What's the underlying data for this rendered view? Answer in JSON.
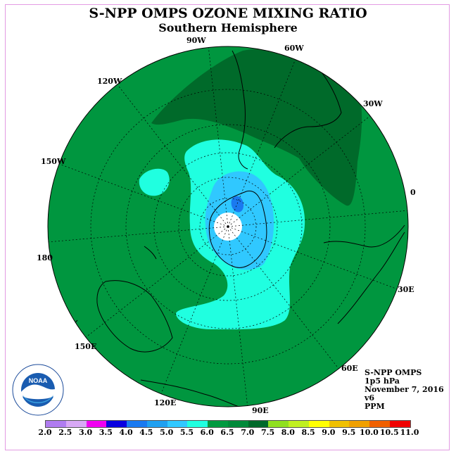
{
  "title": "S-NPP OMPS OZONE MIXING RATIO",
  "subtitle": "Southern Hemisphere",
  "longitude_labels": [
    {
      "key": "90w",
      "text": "90W"
    },
    {
      "key": "60w",
      "text": "60W"
    },
    {
      "key": "120w",
      "text": "120W"
    },
    {
      "key": "30w",
      "text": "30W"
    },
    {
      "key": "150w",
      "text": "150W"
    },
    {
      "key": "0",
      "text": "0"
    },
    {
      "key": "180",
      "text": "180"
    },
    {
      "key": "30e",
      "text": "30E"
    },
    {
      "key": "150e",
      "text": "150E"
    },
    {
      "key": "60e",
      "text": "60E"
    },
    {
      "key": "120e",
      "text": "120E"
    },
    {
      "key": "90e",
      "text": "90E"
    }
  ],
  "info": {
    "instrument": "S-NPP OMPS",
    "level": "1p5 hPa",
    "date": "November 7, 2016",
    "version": "v6",
    "units": "PPM"
  },
  "logo": {
    "text": "NOAA",
    "icon": "noaa-logo"
  },
  "legend": {
    "ticks": [
      "2.0",
      "2.5",
      "3.0",
      "3.5",
      "4.0",
      "4.5",
      "5.0",
      "5.5",
      "6.0",
      "6.5",
      "7.0",
      "7.5",
      "8.0",
      "8.5",
      "9.0",
      "9.5",
      "10.0",
      "10.5",
      "11.0"
    ],
    "colors": [
      "#b07cf0",
      "#d8a8f5",
      "#f000f0",
      "#0a00e0",
      "#1a7af0",
      "#20a0f0",
      "#30c8ff",
      "#20ffe0",
      "#009a40",
      "#008a3a",
      "#006a2a",
      "#90e020",
      "#c0f020",
      "#ffff00",
      "#f0c000",
      "#f0a000",
      "#f06000",
      "#f00000",
      "#7a4a2a"
    ]
  },
  "map_colors": {
    "band_6_0": "#009a40",
    "band_6_5": "#006a2a",
    "band_5_5": "#20ffe0",
    "band_5_0": "#30c8ff",
    "band_4_5": "#1a7af0"
  }
}
